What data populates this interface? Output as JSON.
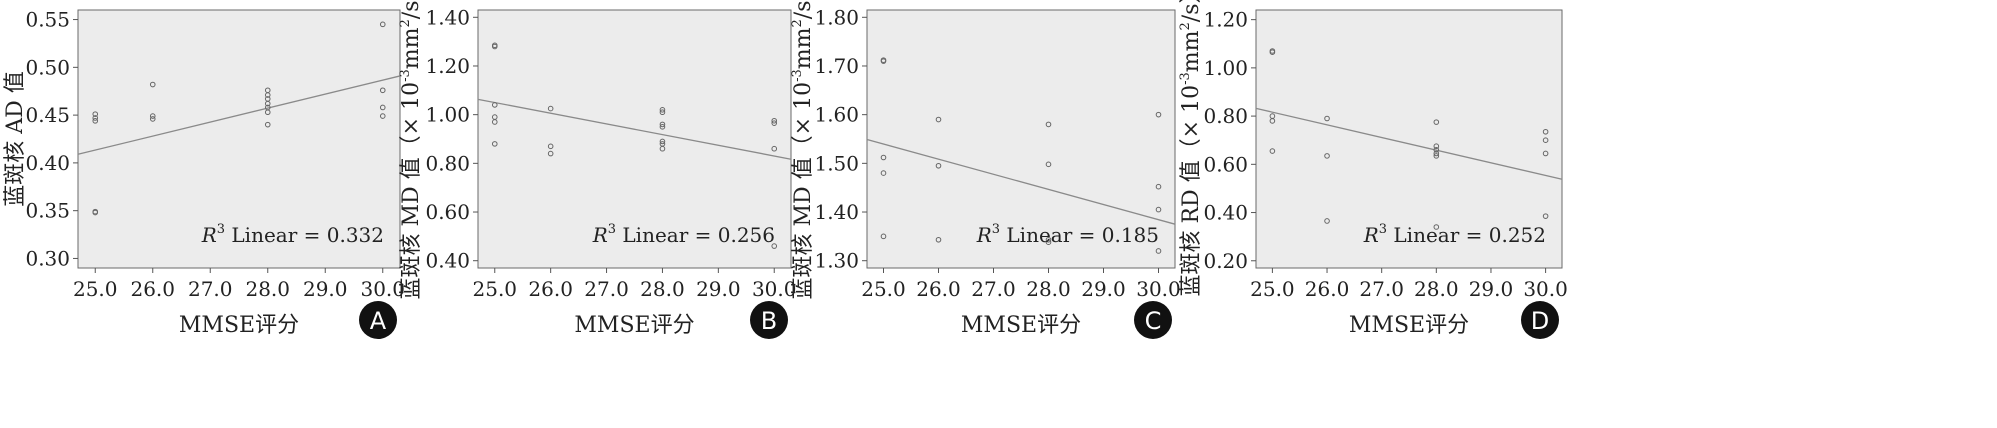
{
  "chart_data": [
    {
      "type": "scatter",
      "panel_letter": "A",
      "xlabel": "MMSE评分",
      "ylabel": "蓝斑核 AD 值",
      "x_ticks": [
        "25.0",
        "26.0",
        "27.0",
        "28.0",
        "29.0",
        "30.0"
      ],
      "y_ticks": [
        "0.30",
        "0.35",
        "0.40",
        "0.45",
        "0.50",
        "0.55"
      ],
      "xlim": [
        24.7,
        30.3
      ],
      "ylim": [
        0.29,
        0.56
      ],
      "grid": false,
      "fit_label": "R",
      "fit_sup": "3",
      "fit_text": " Linear = 0.332",
      "fit_line": [
        [
          24.7,
          0.409
        ],
        [
          30.3,
          0.491
        ]
      ],
      "points": [
        [
          25.0,
          0.451
        ],
        [
          25.0,
          0.447
        ],
        [
          25.0,
          0.444
        ],
        [
          25.0,
          0.349
        ],
        [
          25.0,
          0.348
        ],
        [
          26.0,
          0.482
        ],
        [
          26.0,
          0.449
        ],
        [
          26.0,
          0.446
        ],
        [
          28.0,
          0.476
        ],
        [
          28.0,
          0.471
        ],
        [
          28.0,
          0.467
        ],
        [
          28.0,
          0.462
        ],
        [
          28.0,
          0.458
        ],
        [
          28.0,
          0.453
        ],
        [
          28.0,
          0.44
        ],
        [
          30.0,
          0.545
        ],
        [
          30.0,
          0.476
        ],
        [
          30.0,
          0.458
        ],
        [
          30.0,
          0.449
        ]
      ]
    },
    {
      "type": "scatter",
      "panel_letter": "B",
      "xlabel": "MMSE评分",
      "ylabel": "蓝斑核 MD 值（× 10",
      "ylabel_sup1": "-3",
      "ylabel_mid": "mm",
      "ylabel_sup2": "2",
      "ylabel_end": "/s）",
      "x_ticks": [
        "25.0",
        "26.0",
        "27.0",
        "28.0",
        "29.0",
        "30.0"
      ],
      "y_ticks": [
        "0.40",
        "0.60",
        "0.80",
        "1.00",
        "1.20",
        "1.40"
      ],
      "xlim": [
        24.7,
        30.3
      ],
      "ylim": [
        0.37,
        1.43
      ],
      "grid": false,
      "fit_label": "R",
      "fit_sup": "3",
      "fit_text": " Linear = 0.256",
      "fit_line": [
        [
          24.7,
          1.063
        ],
        [
          30.3,
          0.817
        ]
      ],
      "points": [
        [
          25.0,
          1.285
        ],
        [
          25.0,
          1.28
        ],
        [
          25.0,
          1.04
        ],
        [
          25.0,
          0.99
        ],
        [
          25.0,
          0.97
        ],
        [
          25.0,
          0.88
        ],
        [
          26.0,
          1.025
        ],
        [
          26.0,
          0.87
        ],
        [
          26.0,
          0.84
        ],
        [
          28.0,
          1.02
        ],
        [
          28.0,
          1.01
        ],
        [
          28.0,
          0.96
        ],
        [
          28.0,
          0.95
        ],
        [
          28.0,
          0.89
        ],
        [
          28.0,
          0.88
        ],
        [
          28.0,
          0.86
        ],
        [
          30.0,
          0.975
        ],
        [
          30.0,
          0.965
        ],
        [
          30.0,
          0.86
        ],
        [
          30.0,
          0.46
        ]
      ]
    },
    {
      "type": "scatter",
      "panel_letter": "C",
      "xlabel": "MMSE评分",
      "ylabel": "蓝斑核 MD 值（× 10",
      "ylabel_sup1": "-3",
      "ylabel_mid": "mm",
      "ylabel_sup2": "2",
      "ylabel_end": "/s）",
      "x_ticks": [
        "25.0",
        "26.0",
        "27.0",
        "28.0",
        "29.0",
        "30.0"
      ],
      "y_ticks": [
        "1.30",
        "1.40",
        "1.50",
        "1.60",
        "1.70",
        "1.80"
      ],
      "xlim": [
        24.7,
        30.3
      ],
      "ylim": [
        1.285,
        1.815
      ],
      "grid": false,
      "fit_label": "R",
      "fit_sup": "3",
      "fit_text": " Linear = 0.185",
      "fit_line": [
        [
          24.7,
          1.549
        ],
        [
          30.3,
          1.375
        ]
      ],
      "points": [
        [
          25.0,
          1.712
        ],
        [
          25.0,
          1.71
        ],
        [
          25.0,
          1.512
        ],
        [
          25.0,
          1.48
        ],
        [
          25.0,
          1.35
        ],
        [
          26.0,
          1.59
        ],
        [
          26.0,
          1.495
        ],
        [
          26.0,
          1.343
        ],
        [
          28.0,
          1.58
        ],
        [
          28.0,
          1.498
        ],
        [
          28.0,
          1.343
        ],
        [
          28.0,
          1.338
        ],
        [
          30.0,
          1.6
        ],
        [
          30.0,
          1.452
        ],
        [
          30.0,
          1.405
        ],
        [
          30.0,
          1.32
        ]
      ]
    },
    {
      "type": "scatter",
      "panel_letter": "D",
      "xlabel": "MMSE评分",
      "ylabel": "蓝斑核 RD 值（× 10",
      "ylabel_sup1": "-3",
      "ylabel_mid": "mm",
      "ylabel_sup2": "2",
      "ylabel_end": "/s）",
      "x_ticks": [
        "25.0",
        "26.0",
        "27.0",
        "28.0",
        "29.0",
        "30.0"
      ],
      "y_ticks": [
        "0.20",
        "0.40",
        "0.60",
        "0.80",
        "1.00",
        "1.20"
      ],
      "xlim": [
        24.7,
        30.3
      ],
      "ylim": [
        0.17,
        1.24
      ],
      "grid": false,
      "fit_label": "R",
      "fit_sup": "3",
      "fit_text": " Linear = 0.252",
      "fit_line": [
        [
          24.7,
          0.832
        ],
        [
          30.3,
          0.538
        ]
      ],
      "points": [
        [
          25.0,
          1.07
        ],
        [
          25.0,
          1.065
        ],
        [
          25.0,
          0.8
        ],
        [
          25.0,
          0.78
        ],
        [
          25.0,
          0.655
        ],
        [
          26.0,
          0.79
        ],
        [
          26.0,
          0.635
        ],
        [
          26.0,
          0.365
        ],
        [
          28.0,
          0.775
        ],
        [
          28.0,
          0.675
        ],
        [
          28.0,
          0.66
        ],
        [
          28.0,
          0.645
        ],
        [
          28.0,
          0.635
        ],
        [
          28.0,
          0.34
        ],
        [
          30.0,
          0.735
        ],
        [
          30.0,
          0.7
        ],
        [
          30.0,
          0.645
        ],
        [
          30.0,
          0.385
        ]
      ]
    }
  ],
  "colors": {
    "plot_background": "#ececec",
    "axis": "#555555",
    "frame": "#6a6a6a",
    "point": "#666666",
    "fit_line": "#8a8a8a",
    "badge": "#111111"
  }
}
